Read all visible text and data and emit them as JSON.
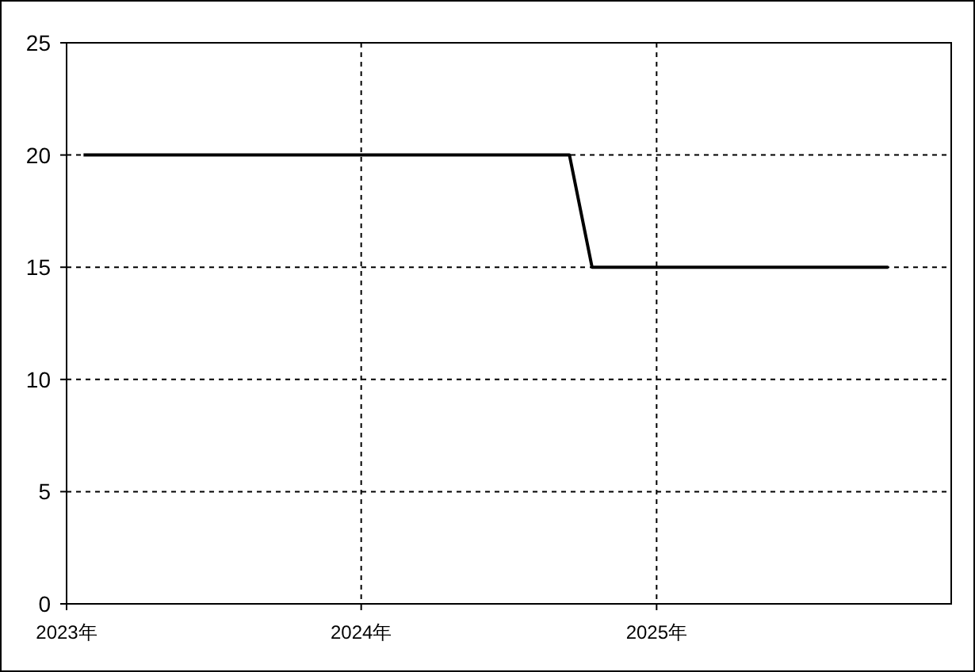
{
  "chart_data": {
    "type": "line",
    "x": [
      "2023-01-22",
      "2024-09-15",
      "2024-10-13",
      "2025-10-15"
    ],
    "series": [
      {
        "color": "#000000",
        "values": [
          20,
          20,
          15,
          15
        ]
      }
    ],
    "xlim": [
      "2023-01-01",
      "2026-01-01"
    ],
    "xticks": [
      {
        "value": "2023-01-01",
        "label": "2023年"
      },
      {
        "value": "2024-01-01",
        "label": "2024年"
      },
      {
        "value": "2025-01-01",
        "label": "2025年"
      }
    ],
    "ylim": [
      0,
      25
    ],
    "yticks": [
      0,
      5,
      10,
      15,
      20,
      25
    ],
    "grid": true
  }
}
